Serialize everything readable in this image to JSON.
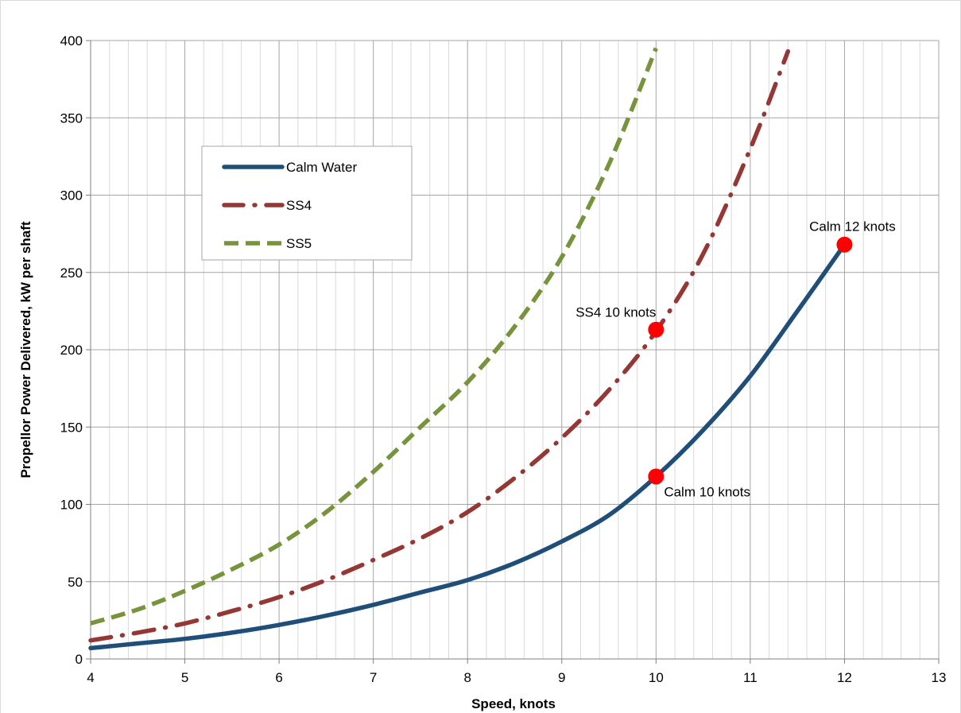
{
  "chart_data": {
    "type": "line",
    "title": "",
    "xlabel": "Speed, knots",
    "ylabel": "Propellor Power Delivered, kW per shaft",
    "xlim": [
      4,
      13
    ],
    "ylim": [
      0,
      400
    ],
    "x_ticks": [
      4,
      5,
      6,
      7,
      8,
      9,
      10,
      11,
      12,
      13
    ],
    "y_ticks": [
      0,
      50,
      100,
      150,
      200,
      250,
      300,
      350,
      400
    ],
    "grid": true,
    "minor_x_grid_step": 0.2,
    "legend_position": "upper-left",
    "series": [
      {
        "name": "Calm Water",
        "color": "#1F4E79",
        "style": "solid",
        "x": [
          4.0,
          4.5,
          5.0,
          5.5,
          6.0,
          6.5,
          7.0,
          7.5,
          8.0,
          8.5,
          9.0,
          9.5,
          10.0,
          10.5,
          11.0,
          11.5,
          12.0
        ],
        "y": [
          7,
          10,
          13,
          17,
          22,
          28,
          35,
          43,
          51,
          62,
          76,
          93,
          118,
          148,
          183,
          225,
          268
        ]
      },
      {
        "name": "SS4",
        "color": "#953735",
        "style": "dash-dot",
        "x": [
          4.0,
          4.5,
          5.0,
          5.5,
          6.0,
          6.5,
          7.0,
          7.5,
          8.0,
          8.5,
          9.0,
          9.5,
          10.0,
          10.5,
          11.0,
          11.4
        ],
        "y": [
          12,
          17,
          23,
          31,
          40,
          51,
          64,
          78,
          95,
          117,
          143,
          174,
          212,
          262,
          330,
          393
        ]
      },
      {
        "name": "SS5",
        "color": "#77933C",
        "style": "dash",
        "x": [
          4.0,
          4.5,
          5.0,
          5.5,
          6.0,
          6.5,
          7.0,
          7.5,
          8.0,
          8.5,
          9.0,
          9.5,
          10.0
        ],
        "y": [
          23,
          32,
          44,
          58,
          74,
          95,
          121,
          150,
          179,
          215,
          260,
          320,
          395
        ]
      }
    ],
    "annotations": [
      {
        "label": "Calm 12 knots",
        "x": 12,
        "y": 268,
        "color": "#FF0000",
        "label_anchor": "above"
      },
      {
        "label": "SS4 10 knots",
        "x": 10,
        "y": 213,
        "color": "#FF0000",
        "label_anchor": "left"
      },
      {
        "label": "Calm 10 knots",
        "x": 10,
        "y": 118,
        "color": "#FF0000",
        "label_anchor": "below-right"
      }
    ]
  }
}
